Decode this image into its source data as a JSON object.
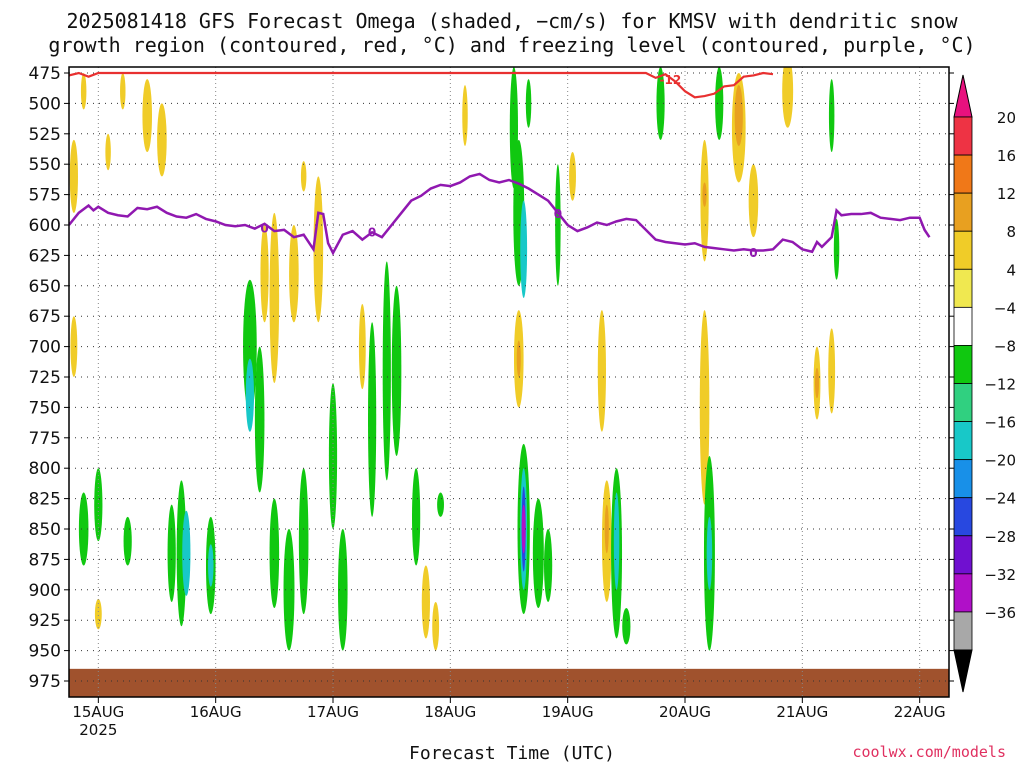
{
  "title": {
    "line1": "2025081418 GFS Forecast Omega (shaded, −cm/s) for KMSV with dendritic snow",
    "line2": "growth region (contoured, red, °C) and freezing level (contoured, purple, °C)"
  },
  "credit": "coolwx.com/models",
  "chart_data": {
    "type": "heatmap",
    "xlabel": "Forecast Time (UTC)",
    "ylabel": "",
    "x_ticks": [
      {
        "label": "15AUG",
        "sublabel": "2025",
        "t": 6
      },
      {
        "label": "16AUG",
        "t": 30
      },
      {
        "label": "17AUG",
        "t": 54
      },
      {
        "label": "18AUG",
        "t": 78
      },
      {
        "label": "19AUG",
        "t": 102
      },
      {
        "label": "20AUG",
        "t": 126
      },
      {
        "label": "21AUG",
        "t": 150
      },
      {
        "label": "22AUG",
        "t": 174
      }
    ],
    "xlim": [
      0,
      180
    ],
    "y_ticks": [
      475,
      500,
      525,
      550,
      575,
      600,
      625,
      650,
      675,
      700,
      725,
      750,
      775,
      800,
      825,
      850,
      875,
      900,
      925,
      950,
      975
    ],
    "ylim": [
      975,
      475
    ],
    "colorbar": {
      "labels": [
        "20",
        "16",
        "12",
        "8",
        "4",
        "−4",
        "−8",
        "−12",
        "−16",
        "−20",
        "−24",
        "−28",
        "−32",
        "−36"
      ],
      "colors": [
        "#ee3344",
        "#f07818",
        "#e8a020",
        "#f0cc28",
        "#f0e850",
        "#ffffff",
        "#10c810",
        "#30d080",
        "#18c8c8",
        "#1890e8",
        "#2848e0",
        "#7010d0",
        "#b010c8",
        "#a8a8a8"
      ],
      "top_arrow_color": "#e8117e",
      "bottom_arrow_color": "#000000"
    },
    "freezing_level": {
      "color": "#9018b0",
      "label": "0",
      "points": [
        [
          0,
          600
        ],
        [
          2,
          590
        ],
        [
          4,
          584
        ],
        [
          5,
          588
        ],
        [
          6,
          585
        ],
        [
          8,
          590
        ],
        [
          10,
          592
        ],
        [
          12,
          593
        ],
        [
          14,
          586
        ],
        [
          16,
          587
        ],
        [
          18,
          585
        ],
        [
          20,
          590
        ],
        [
          22,
          593
        ],
        [
          24,
          594
        ],
        [
          26,
          591
        ],
        [
          28,
          595
        ],
        [
          30,
          597
        ],
        [
          32,
          600
        ],
        [
          34,
          601
        ],
        [
          36,
          600
        ],
        [
          38,
          603
        ],
        [
          40,
          599
        ],
        [
          42,
          605
        ],
        [
          44,
          604
        ],
        [
          46,
          610
        ],
        [
          48,
          608
        ],
        [
          50,
          620
        ],
        [
          51,
          590
        ],
        [
          52,
          591
        ],
        [
          53,
          615
        ],
        [
          54,
          623
        ],
        [
          56,
          608
        ],
        [
          58,
          605
        ],
        [
          60,
          612
        ],
        [
          62,
          606
        ],
        [
          64,
          610
        ],
        [
          66,
          600
        ],
        [
          68,
          590
        ],
        [
          70,
          580
        ],
        [
          72,
          576
        ],
        [
          74,
          570
        ],
        [
          76,
          567
        ],
        [
          78,
          568
        ],
        [
          80,
          565
        ],
        [
          82,
          560
        ],
        [
          84,
          558
        ],
        [
          86,
          563
        ],
        [
          88,
          565
        ],
        [
          90,
          563
        ],
        [
          92,
          566
        ],
        [
          94,
          570
        ],
        [
          96,
          575
        ],
        [
          98,
          580
        ],
        [
          100,
          590
        ],
        [
          102,
          600
        ],
        [
          104,
          605
        ],
        [
          106,
          602
        ],
        [
          108,
          598
        ],
        [
          110,
          600
        ],
        [
          112,
          597
        ],
        [
          114,
          595
        ],
        [
          116,
          596
        ],
        [
          118,
          604
        ],
        [
          120,
          612
        ],
        [
          122,
          614
        ],
        [
          124,
          615
        ],
        [
          126,
          616
        ],
        [
          128,
          615
        ],
        [
          130,
          618
        ],
        [
          132,
          619
        ],
        [
          134,
          620
        ],
        [
          136,
          621
        ],
        [
          138,
          620
        ],
        [
          140,
          621
        ],
        [
          142,
          621
        ],
        [
          144,
          620
        ],
        [
          146,
          612
        ],
        [
          148,
          614
        ],
        [
          150,
          620
        ],
        [
          152,
          622
        ],
        [
          153,
          614
        ],
        [
          154,
          618
        ],
        [
          156,
          610
        ],
        [
          157,
          588
        ],
        [
          158,
          592
        ],
        [
          160,
          591
        ],
        [
          162,
          591
        ],
        [
          164,
          590
        ],
        [
          166,
          594
        ],
        [
          168,
          595
        ],
        [
          170,
          596
        ],
        [
          172,
          594
        ],
        [
          174,
          594
        ],
        [
          175,
          604
        ],
        [
          176,
          610
        ]
      ]
    },
    "dgz_contour": {
      "color": "#e83030",
      "label": "-12",
      "points": [
        [
          0,
          477
        ],
        [
          2,
          475
        ],
        [
          4,
          478
        ],
        [
          6,
          475
        ],
        [
          108,
          475
        ],
        [
          118,
          475
        ],
        [
          120,
          479
        ],
        [
          122,
          476
        ],
        [
          124,
          482
        ],
        [
          126,
          490
        ],
        [
          128,
          495
        ],
        [
          130,
          494
        ],
        [
          132,
          492
        ],
        [
          134,
          486
        ],
        [
          136,
          485
        ],
        [
          138,
          478
        ],
        [
          140,
          477
        ],
        [
          142,
          475
        ],
        [
          144,
          476
        ]
      ]
    },
    "omega_cells": [
      {
        "t": 1,
        "p": 560,
        "w": 0.6,
        "h": 60,
        "v": 6
      },
      {
        "t": 1,
        "p": 700,
        "w": 0.5,
        "h": 50,
        "v": 6
      },
      {
        "t": 3,
        "p": 490,
        "w": 0.4,
        "h": 30,
        "v": 6
      },
      {
        "t": 3,
        "p": 850,
        "w": 0.7,
        "h": 60,
        "v": -6
      },
      {
        "t": 6,
        "p": 830,
        "w": 0.6,
        "h": 60,
        "v": -6
      },
      {
        "t": 6,
        "p": 920,
        "w": 0.5,
        "h": 25,
        "v": 6
      },
      {
        "t": 8,
        "p": 540,
        "w": 0.4,
        "h": 30,
        "v": 6
      },
      {
        "t": 11,
        "p": 490,
        "w": 0.4,
        "h": 30,
        "v": 6
      },
      {
        "t": 12,
        "p": 860,
        "w": 0.6,
        "h": 40,
        "v": -6
      },
      {
        "t": 16,
        "p": 510,
        "w": 0.7,
        "h": 60,
        "v": 6
      },
      {
        "t": 19,
        "p": 530,
        "w": 0.7,
        "h": 60,
        "v": 6
      },
      {
        "t": 21,
        "p": 870,
        "w": 0.6,
        "h": 80,
        "v": -6
      },
      {
        "t": 23,
        "p": 870,
        "w": 0.7,
        "h": 120,
        "v": -6
      },
      {
        "t": 24,
        "p": 870,
        "w": 0.6,
        "h": 70,
        "v": -14
      },
      {
        "t": 29,
        "p": 880,
        "w": 0.7,
        "h": 80,
        "v": -6
      },
      {
        "t": 29,
        "p": 880,
        "w": 0.4,
        "h": 35,
        "v": -14
      },
      {
        "t": 37,
        "p": 700,
        "w": 1.0,
        "h": 110,
        "v": -6
      },
      {
        "t": 37,
        "p": 740,
        "w": 0.6,
        "h": 60,
        "v": -14
      },
      {
        "t": 39,
        "p": 760,
        "w": 0.7,
        "h": 120,
        "v": -6
      },
      {
        "t": 40,
        "p": 640,
        "w": 0.6,
        "h": 80,
        "v": 6
      },
      {
        "t": 42,
        "p": 660,
        "w": 0.7,
        "h": 140,
        "v": 6
      },
      {
        "t": 42,
        "p": 870,
        "w": 0.7,
        "h": 90,
        "v": -6
      },
      {
        "t": 45,
        "p": 900,
        "w": 0.8,
        "h": 100,
        "v": -6
      },
      {
        "t": 46,
        "p": 640,
        "w": 0.7,
        "h": 80,
        "v": 6
      },
      {
        "t": 48,
        "p": 860,
        "w": 0.7,
        "h": 120,
        "v": -6
      },
      {
        "t": 48,
        "p": 560,
        "w": 0.4,
        "h": 25,
        "v": 6
      },
      {
        "t": 51,
        "p": 620,
        "w": 0.7,
        "h": 120,
        "v": 6
      },
      {
        "t": 54,
        "p": 790,
        "w": 0.6,
        "h": 120,
        "v": -6
      },
      {
        "t": 56,
        "p": 900,
        "w": 0.7,
        "h": 100,
        "v": -6
      },
      {
        "t": 60,
        "p": 700,
        "w": 0.5,
        "h": 70,
        "v": 6
      },
      {
        "t": 62,
        "p": 760,
        "w": 0.6,
        "h": 160,
        "v": -6
      },
      {
        "t": 65,
        "p": 720,
        "w": 0.6,
        "h": 180,
        "v": -6
      },
      {
        "t": 67,
        "p": 720,
        "w": 0.7,
        "h": 140,
        "v": -6
      },
      {
        "t": 71,
        "p": 840,
        "w": 0.6,
        "h": 80,
        "v": -6
      },
      {
        "t": 73,
        "p": 910,
        "w": 0.6,
        "h": 60,
        "v": 6
      },
      {
        "t": 75,
        "p": 930,
        "w": 0.5,
        "h": 40,
        "v": 6
      },
      {
        "t": 76,
        "p": 830,
        "w": 0.5,
        "h": 20,
        "v": -6
      },
      {
        "t": 81,
        "p": 510,
        "w": 0.4,
        "h": 50,
        "v": 6
      },
      {
        "t": 91,
        "p": 520,
        "w": 0.6,
        "h": 100,
        "v": -6
      },
      {
        "t": 92,
        "p": 590,
        "w": 0.8,
        "h": 120,
        "v": -6
      },
      {
        "t": 93,
        "p": 620,
        "w": 0.5,
        "h": 80,
        "v": -14
      },
      {
        "t": 94,
        "p": 500,
        "w": 0.4,
        "h": 40,
        "v": -6
      },
      {
        "t": 92,
        "p": 710,
        "w": 0.7,
        "h": 80,
        "v": 6
      },
      {
        "t": 92,
        "p": 710,
        "w": 0.3,
        "h": 30,
        "v": 10
      },
      {
        "t": 93,
        "p": 850,
        "w": 0.9,
        "h": 140,
        "v": -6
      },
      {
        "t": 93,
        "p": 850,
        "w": 0.5,
        "h": 100,
        "v": -14
      },
      {
        "t": 93,
        "p": 850,
        "w": 0.3,
        "h": 70,
        "v": -22
      },
      {
        "t": 93,
        "p": 850,
        "w": 0.15,
        "h": 40,
        "v": -30
      },
      {
        "t": 96,
        "p": 870,
        "w": 0.8,
        "h": 90,
        "v": -6
      },
      {
        "t": 98,
        "p": 880,
        "w": 0.6,
        "h": 60,
        "v": -6
      },
      {
        "t": 100,
        "p": 600,
        "w": 0.4,
        "h": 100,
        "v": -6
      },
      {
        "t": 103,
        "p": 560,
        "w": 0.5,
        "h": 40,
        "v": 6
      },
      {
        "t": 109,
        "p": 720,
        "w": 0.6,
        "h": 100,
        "v": 6
      },
      {
        "t": 110,
        "p": 860,
        "w": 0.7,
        "h": 100,
        "v": 6
      },
      {
        "t": 110,
        "p": 850,
        "w": 0.3,
        "h": 40,
        "v": 10
      },
      {
        "t": 112,
        "p": 870,
        "w": 0.8,
        "h": 140,
        "v": -6
      },
      {
        "t": 112,
        "p": 860,
        "w": 0.4,
        "h": 80,
        "v": -14
      },
      {
        "t": 114,
        "p": 930,
        "w": 0.6,
        "h": 30,
        "v": -6
      },
      {
        "t": 121,
        "p": 500,
        "w": 0.6,
        "h": 60,
        "v": -6
      },
      {
        "t": 130,
        "p": 750,
        "w": 0.7,
        "h": 160,
        "v": 6
      },
      {
        "t": 131,
        "p": 870,
        "w": 0.8,
        "h": 160,
        "v": -6
      },
      {
        "t": 131,
        "p": 870,
        "w": 0.4,
        "h": 60,
        "v": -14
      },
      {
        "t": 130,
        "p": 580,
        "w": 0.6,
        "h": 100,
        "v": 6
      },
      {
        "t": 130,
        "p": 575,
        "w": 0.3,
        "h": 20,
        "v": 10
      },
      {
        "t": 133,
        "p": 500,
        "w": 0.6,
        "h": 60,
        "v": -6
      },
      {
        "t": 137,
        "p": 520,
        "w": 1.0,
        "h": 90,
        "v": 6
      },
      {
        "t": 137,
        "p": 510,
        "w": 0.6,
        "h": 50,
        "v": 10
      },
      {
        "t": 140,
        "p": 580,
        "w": 0.7,
        "h": 60,
        "v": 6
      },
      {
        "t": 147,
        "p": 490,
        "w": 0.8,
        "h": 60,
        "v": 6
      },
      {
        "t": 153,
        "p": 730,
        "w": 0.5,
        "h": 60,
        "v": 6
      },
      {
        "t": 153,
        "p": 730,
        "w": 0.2,
        "h": 25,
        "v": 10
      },
      {
        "t": 156,
        "p": 720,
        "w": 0.5,
        "h": 70,
        "v": 6
      },
      {
        "t": 156,
        "p": 510,
        "w": 0.4,
        "h": 60,
        "v": -6
      },
      {
        "t": 157,
        "p": 620,
        "w": 0.4,
        "h": 50,
        "v": -6
      }
    ],
    "surface": {
      "color": "#a0522d",
      "top_p": 965
    }
  }
}
